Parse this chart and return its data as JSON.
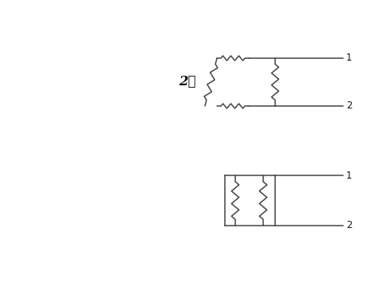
{
  "bg_color": "#ffffff",
  "line_color": "#444444",
  "text_color": "#111111",
  "label_2ohm": "2ℓ",
  "label_1": "1",
  "label_2": "2",
  "figsize": [
    4.74,
    3.55
  ],
  "dpi": 100,
  "xlim": [
    0,
    4.74
  ],
  "ylim": [
    0,
    3.55
  ]
}
